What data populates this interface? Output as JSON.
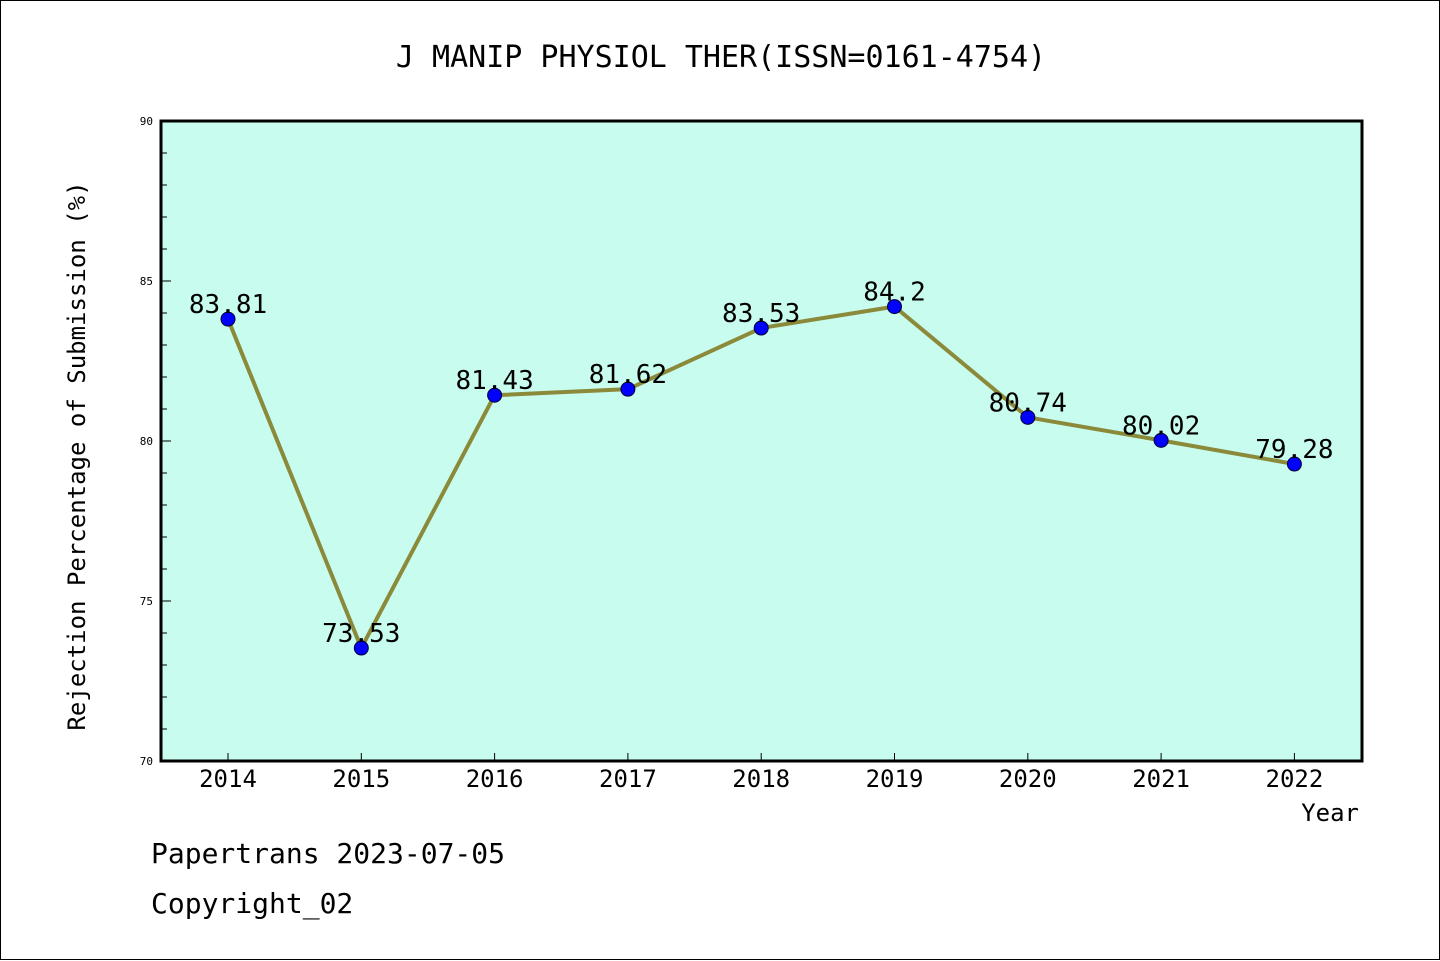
{
  "colors": {
    "plot_background": "#c8fcee",
    "line": "#8b8a3a",
    "marker": "#0000ff",
    "axes": "#000000"
  },
  "footer": {
    "source": "Papertrans 2023-07-05",
    "copyright": "Copyright_02"
  },
  "chart_data": {
    "type": "line",
    "title": "J MANIP PHYSIOL THER(ISSN=0161-4754)",
    "xlabel": "Year",
    "ylabel": "Rejection Percentage of Submission (%)",
    "categories": [
      "2014",
      "2015",
      "2016",
      "2017",
      "2018",
      "2019",
      "2020",
      "2021",
      "2022"
    ],
    "series": [
      {
        "values": [
          83.81,
          73.53,
          81.43,
          81.62,
          83.53,
          84.2,
          80.74,
          80.02,
          79.28
        ],
        "labels": [
          "83.81",
          "73.53",
          "81.43",
          "81.62",
          "83.53",
          "84.2",
          "80.74",
          "80.02",
          "79.28"
        ]
      }
    ],
    "ylim": [
      70,
      90
    ],
    "yticks": [
      "70",
      "75",
      "80",
      "85",
      "90"
    ],
    "grid": false,
    "legend": "none"
  }
}
